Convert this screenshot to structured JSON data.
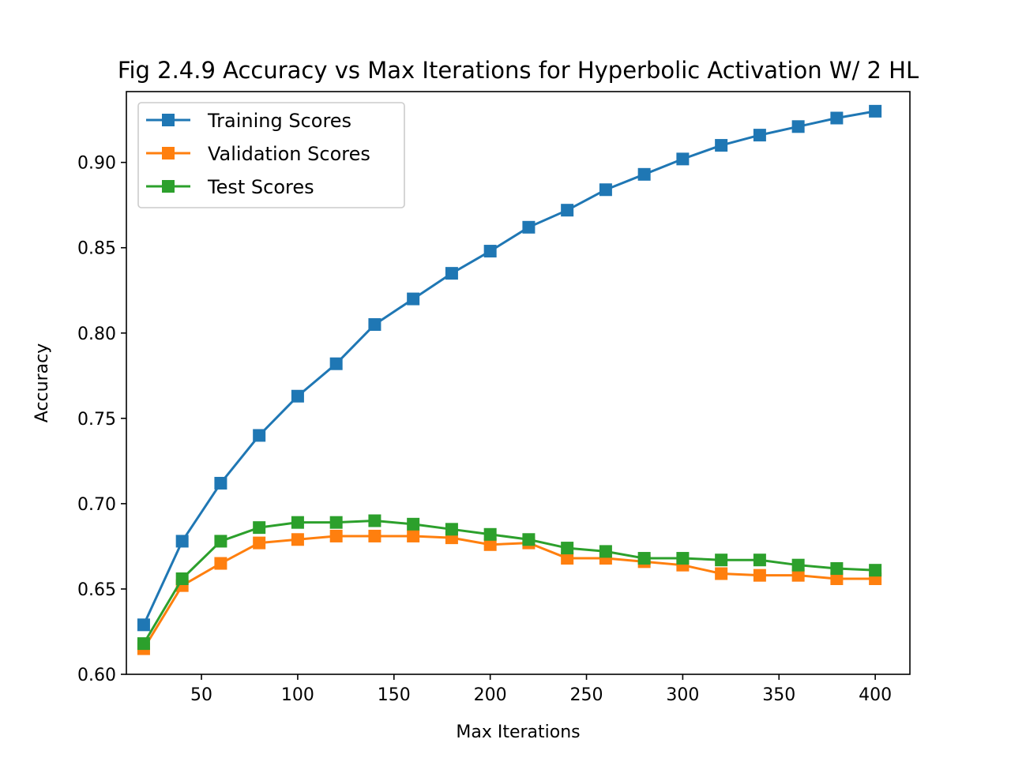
{
  "chart_data": {
    "type": "line",
    "title": "Fig 2.4.9 Accuracy vs Max Iterations for Hyperbolic Activation W/ 2 HL",
    "xlabel": "Max Iterations",
    "ylabel": "Accuracy",
    "xlim": [
      11,
      418
    ],
    "ylim": [
      0.6,
      0.9415
    ],
    "xticks": [
      50,
      100,
      150,
      200,
      250,
      300,
      350,
      400
    ],
    "xtick_labels": [
      "50",
      "100",
      "150",
      "200",
      "250",
      "300",
      "350",
      "400"
    ],
    "yticks": [
      0.6,
      0.65,
      0.7,
      0.75,
      0.8,
      0.85,
      0.9
    ],
    "ytick_labels": [
      "0.60",
      "0.65",
      "0.70",
      "0.75",
      "0.80",
      "0.85",
      "0.90"
    ],
    "grid": false,
    "legend_position": "upper left",
    "marker": "square",
    "x": [
      20,
      40,
      60,
      80,
      100,
      120,
      140,
      160,
      180,
      200,
      220,
      240,
      260,
      280,
      300,
      320,
      340,
      360,
      380,
      400
    ],
    "series": [
      {
        "name": "Training Scores",
        "color": "#1f77b4",
        "values": [
          0.629,
          0.678,
          0.712,
          0.74,
          0.763,
          0.782,
          0.805,
          0.82,
          0.835,
          0.848,
          0.862,
          0.872,
          0.884,
          0.893,
          0.902,
          0.91,
          0.916,
          0.921,
          0.926,
          0.93
        ]
      },
      {
        "name": "Validation Scores",
        "color": "#ff7f0e",
        "values": [
          0.615,
          0.652,
          0.665,
          0.677,
          0.679,
          0.681,
          0.681,
          0.681,
          0.68,
          0.676,
          0.677,
          0.668,
          0.668,
          0.666,
          0.664,
          0.659,
          0.658,
          0.658,
          0.656,
          0.656
        ]
      },
      {
        "name": "Test Scores",
        "color": "#2ca02c",
        "values": [
          0.618,
          0.656,
          0.678,
          0.686,
          0.689,
          0.689,
          0.69,
          0.688,
          0.685,
          0.682,
          0.679,
          0.674,
          0.672,
          0.668,
          0.668,
          0.667,
          0.667,
          0.664,
          0.662,
          0.661
        ]
      }
    ]
  }
}
